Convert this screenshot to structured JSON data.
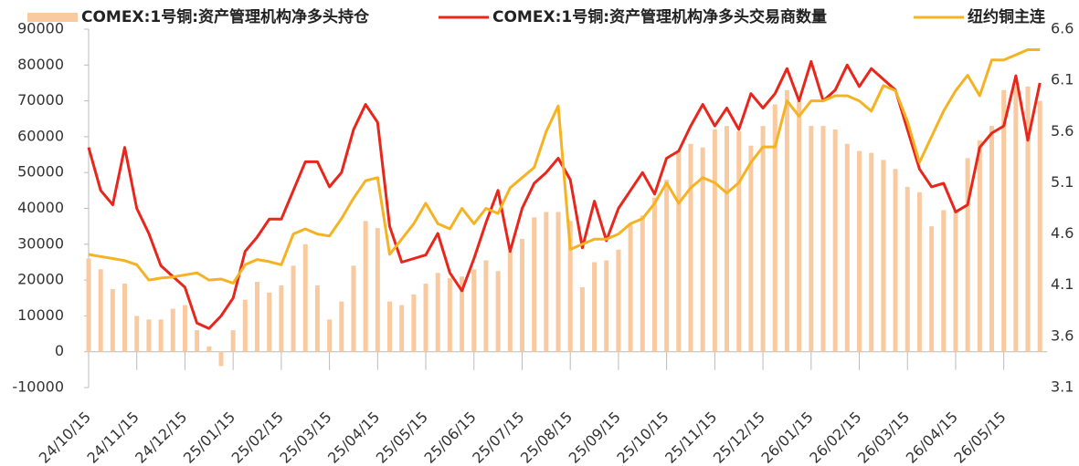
{
  "chart_data": {
    "type": "bar_line",
    "categories": [
      "24/10/15",
      null,
      null,
      null,
      "24/11/15",
      null,
      null,
      null,
      "24/12/15",
      null,
      null,
      null,
      "25/01/15",
      null,
      null,
      null,
      "25/02/15",
      null,
      null,
      null,
      "25/03/15",
      null,
      null,
      null,
      "25/04/15",
      null,
      null,
      null,
      "25/05/15",
      null,
      null,
      null,
      "25/06/15",
      null,
      null,
      null,
      "25/07/15",
      null,
      null,
      null,
      "25/08/15",
      null,
      null,
      null,
      "25/09/15",
      null,
      null,
      null,
      "25/10/15",
      null,
      null,
      null,
      "25/11/15",
      null,
      null,
      null,
      "25/12/15",
      null,
      null,
      null,
      "26/01/15",
      null,
      null,
      null,
      "26/02/15",
      null,
      null,
      null,
      "26/03/15",
      null,
      null,
      null,
      "26/04/15",
      null,
      null,
      null,
      "26/05/15",
      null,
      null,
      null
    ],
    "series": [
      {
        "name": "COMEX:1号铜:资产管理机构净多头持仓",
        "kind": "bar",
        "color": "#f9caa0",
        "values": [
          26000,
          23000,
          17500,
          19000,
          10000,
          9000,
          9000,
          12000,
          13000,
          6000,
          1500,
          -4000,
          6000,
          14500,
          19500,
          16500,
          18500,
          24000,
          30000,
          18500,
          9000,
          14000,
          24000,
          36500,
          34500,
          14000,
          13000,
          16000,
          19000,
          22000,
          20500,
          21000,
          23000,
          25500,
          22500,
          28000,
          31500,
          37500,
          39000,
          39000,
          36500,
          18000,
          25000,
          25500,
          28500,
          35500,
          38000,
          43000,
          48000,
          56000,
          58000,
          57000,
          62000,
          63000,
          61500,
          57500,
          63000,
          69000,
          73000,
          70000,
          63000,
          63000,
          62000,
          58000,
          56000,
          55500,
          53500,
          51000,
          46000,
          44500,
          35000,
          39500,
          39500,
          54000,
          59000,
          63000,
          73000,
          74000,
          74000,
          70000
        ]
      },
      {
        "name": "COMEX:1号铜:资产管理机构净多头交易商数量",
        "kind": "line",
        "color": "#e8261b",
        "values": [
          57000,
          45000,
          41000,
          57000,
          40000,
          33000,
          24000,
          21000,
          18000,
          8000,
          6500,
          10000,
          15000,
          28000,
          32000,
          37000,
          37000,
          45000,
          53000,
          53000,
          46000,
          50000,
          62000,
          69000,
          64000,
          35000,
          25000,
          26000,
          27000,
          33000,
          22000,
          17000,
          26000,
          36000,
          45000,
          28000,
          40000,
          47000,
          50000,
          54000,
          48000,
          29000,
          42000,
          31000,
          40000,
          45000,
          50000,
          44000,
          54000,
          56000,
          63000,
          69000,
          63000,
          68000,
          62000,
          72000,
          68000,
          72000,
          79000,
          70000,
          81000,
          70000,
          73000,
          80000,
          74000,
          79000,
          76000,
          73000,
          62000,
          51000,
          46000,
          47000,
          39000,
          41000,
          57000,
          61000,
          63000,
          77000,
          59000,
          75000
        ]
      },
      {
        "name": "纽约铜主连",
        "kind": "line",
        "axis": "y2",
        "color": "#f5b324",
        "values": [
          4.4,
          4.38,
          4.36,
          4.34,
          4.3,
          4.15,
          4.17,
          4.18,
          4.2,
          4.22,
          4.15,
          4.16,
          4.12,
          4.3,
          4.35,
          4.33,
          4.3,
          4.6,
          4.65,
          4.6,
          4.58,
          4.75,
          4.95,
          5.12,
          5.15,
          4.4,
          4.55,
          4.7,
          4.9,
          4.7,
          4.65,
          4.85,
          4.7,
          4.85,
          4.8,
          5.05,
          5.15,
          5.25,
          5.6,
          5.85,
          4.45,
          4.5,
          4.55,
          4.55,
          4.6,
          4.7,
          4.75,
          4.9,
          5.1,
          4.9,
          5.05,
          5.15,
          5.1,
          5.0,
          5.1,
          5.3,
          5.45,
          5.45,
          5.9,
          5.75,
          5.9,
          5.9,
          5.95,
          5.95,
          5.9,
          5.8,
          6.05,
          6.0,
          5.7,
          5.3,
          5.55,
          5.8,
          6.0,
          6.15,
          5.95,
          6.3,
          6.3,
          6.35,
          6.4,
          6.4
        ]
      }
    ],
    "ylim": [
      -10000,
      90000
    ],
    "yticks": [
      -10000,
      0,
      10000,
      20000,
      30000,
      40000,
      50000,
      60000,
      70000,
      80000,
      90000
    ],
    "y2lim": [
      3.1,
      6.6
    ],
    "y2ticks": [
      3.1,
      3.6,
      4.1,
      4.6,
      5.1,
      5.6,
      6.1,
      6.6
    ]
  }
}
